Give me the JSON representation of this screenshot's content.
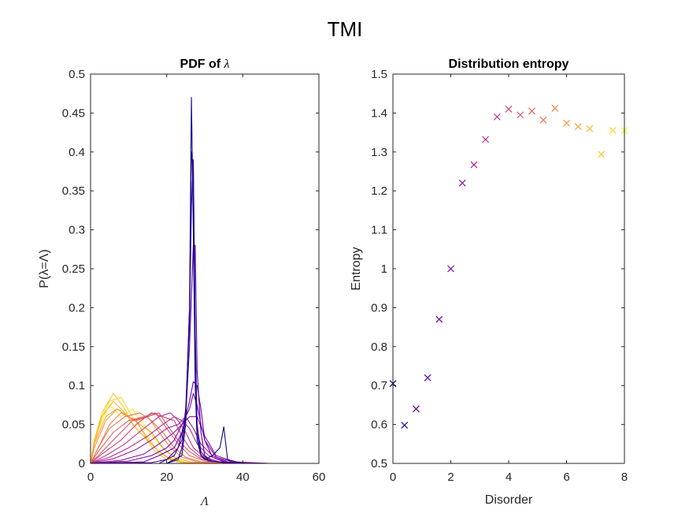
{
  "figure_title": "TMI",
  "chart_data": [
    {
      "type": "line",
      "title": "PDF of λ",
      "title_prefix": "PDF of ",
      "title_symbol": "λ",
      "xlabel": "Λ",
      "ylabel": "P(λ=Λ)",
      "xlim": [
        0,
        60
      ],
      "ylim": [
        0,
        0.5
      ],
      "xticks": [
        0,
        20,
        40,
        60
      ],
      "yticks": [
        0,
        0.05,
        0.1,
        0.15,
        0.2,
        0.25,
        0.3,
        0.35,
        0.4,
        0.45,
        0.5
      ],
      "colormap": "plasma",
      "series": [
        {
          "color": "#0d0887",
          "x": [
            0,
            20,
            22,
            24,
            25,
            26,
            26.5,
            27,
            27.5,
            28,
            29,
            30,
            32,
            34,
            35,
            36,
            40,
            50
          ],
          "y": [
            0,
            0,
            0.005,
            0.01,
            0.05,
            0.2,
            0.47,
            0.3,
            0.1,
            0.03,
            0.01,
            0.005,
            0.01,
            0.02,
            0.047,
            0.005,
            0,
            0
          ]
        },
        {
          "color": "#2a0593",
          "x": [
            0,
            20,
            23,
            24,
            25,
            26,
            26.5,
            27,
            27.5,
            28,
            29,
            31,
            34,
            36,
            40,
            50
          ],
          "y": [
            0,
            0,
            0.005,
            0.02,
            0.06,
            0.2,
            0.4,
            0.38,
            0.15,
            0.04,
            0.01,
            0.003,
            0.002,
            0.001,
            0,
            0
          ]
        },
        {
          "color": "#41049d",
          "x": [
            0,
            18,
            22,
            24,
            25,
            26,
            26.5,
            27,
            27.5,
            28,
            29,
            31,
            35,
            40,
            50
          ],
          "y": [
            0,
            0,
            0.01,
            0.03,
            0.07,
            0.18,
            0.33,
            0.39,
            0.17,
            0.05,
            0.015,
            0.004,
            0.001,
            0,
            0
          ]
        },
        {
          "color": "#5601a4",
          "x": [
            0,
            16,
            20,
            23,
            25,
            26,
            27,
            27.5,
            28,
            29,
            30,
            32,
            36,
            45
          ],
          "y": [
            0,
            0.001,
            0.005,
            0.02,
            0.06,
            0.15,
            0.28,
            0.28,
            0.12,
            0.04,
            0.01,
            0.003,
            0.001,
            0
          ]
        },
        {
          "color": "#6a00a8",
          "x": [
            0,
            14,
            18,
            22,
            24,
            25,
            26,
            27,
            28,
            29,
            30,
            32,
            36,
            45
          ],
          "y": [
            0,
            0.002,
            0.01,
            0.02,
            0.04,
            0.06,
            0.08,
            0.105,
            0.1,
            0.07,
            0.03,
            0.008,
            0.001,
            0
          ]
        },
        {
          "color": "#7e03a8",
          "x": [
            0,
            10,
            16,
            20,
            22,
            24,
            26,
            27,
            28,
            29,
            30,
            33,
            38,
            47
          ],
          "y": [
            0,
            0.003,
            0.01,
            0.02,
            0.03,
            0.05,
            0.07,
            0.09,
            0.075,
            0.05,
            0.03,
            0.008,
            0.001,
            0
          ]
        },
        {
          "color": "#8f0da4",
          "x": [
            0,
            8,
            14,
            18,
            22,
            24,
            26,
            28,
            30,
            33,
            38,
            47
          ],
          "y": [
            0,
            0.004,
            0.012,
            0.025,
            0.04,
            0.05,
            0.06,
            0.06,
            0.035,
            0.01,
            0.002,
            0
          ]
        },
        {
          "color": "#a01a9c",
          "x": [
            0,
            6,
            12,
            16,
            20,
            23,
            25,
            27,
            29,
            32,
            36,
            45
          ],
          "y": [
            0,
            0.006,
            0.018,
            0.03,
            0.045,
            0.05,
            0.06,
            0.045,
            0.025,
            0.01,
            0.002,
            0
          ]
        },
        {
          "color": "#b12a90",
          "x": [
            0,
            5,
            10,
            15,
            19,
            22,
            24,
            26,
            28,
            31,
            35,
            45
          ],
          "y": [
            0,
            0.008,
            0.02,
            0.035,
            0.05,
            0.06,
            0.055,
            0.045,
            0.025,
            0.01,
            0.002,
            0
          ]
        },
        {
          "color": "#bf3984",
          "x": [
            0,
            4,
            9,
            14,
            18,
            21,
            23,
            25,
            27,
            30,
            34,
            44
          ],
          "y": [
            0,
            0.01,
            0.025,
            0.045,
            0.06,
            0.065,
            0.055,
            0.04,
            0.02,
            0.008,
            0.002,
            0
          ]
        },
        {
          "color": "#cc4778",
          "x": [
            0,
            3,
            8,
            12,
            16,
            19,
            22,
            24,
            26,
            29,
            33,
            42
          ],
          "y": [
            0,
            0.012,
            0.03,
            0.05,
            0.065,
            0.06,
            0.055,
            0.035,
            0.02,
            0.008,
            0.002,
            0
          ]
        },
        {
          "color": "#d8576b",
          "x": [
            0,
            3,
            7,
            11,
            15,
            18,
            20,
            23,
            26,
            29,
            33,
            40
          ],
          "y": [
            0,
            0.015,
            0.035,
            0.055,
            0.06,
            0.065,
            0.05,
            0.03,
            0.015,
            0.006,
            0.001,
            0
          ]
        },
        {
          "color": "#e16462",
          "x": [
            0,
            2,
            6,
            10,
            14,
            17,
            20,
            23,
            26,
            30,
            36
          ],
          "y": [
            0,
            0.015,
            0.04,
            0.055,
            0.06,
            0.065,
            0.045,
            0.025,
            0.01,
            0.003,
            0
          ]
        },
        {
          "color": "#ea7457",
          "x": [
            0,
            2,
            5,
            9,
            13,
            16,
            19,
            22,
            25,
            29,
            35
          ],
          "y": [
            0,
            0.02,
            0.045,
            0.06,
            0.065,
            0.055,
            0.04,
            0.02,
            0.008,
            0.002,
            0
          ]
        },
        {
          "color": "#f2844b",
          "x": [
            0,
            2,
            5,
            8,
            12,
            15,
            18,
            21,
            24,
            28,
            34
          ],
          "y": [
            0,
            0.02,
            0.05,
            0.065,
            0.055,
            0.06,
            0.04,
            0.02,
            0.008,
            0.002,
            0
          ]
        },
        {
          "color": "#f89540",
          "x": [
            0,
            1,
            4,
            7,
            10,
            13,
            16,
            19,
            22,
            26,
            32
          ],
          "y": [
            0,
            0.02,
            0.055,
            0.07,
            0.06,
            0.05,
            0.04,
            0.02,
            0.008,
            0.002,
            0
          ]
        },
        {
          "color": "#fca636",
          "x": [
            0,
            1,
            4,
            7,
            10,
            12,
            15,
            18,
            21,
            25,
            30
          ],
          "y": [
            0,
            0.025,
            0.06,
            0.07,
            0.06,
            0.055,
            0.03,
            0.015,
            0.006,
            0.001,
            0
          ]
        },
        {
          "color": "#fdb52e",
          "x": [
            0,
            1,
            3,
            6,
            9,
            12,
            15,
            18,
            21,
            25,
            30
          ],
          "y": [
            0,
            0.025,
            0.06,
            0.08,
            0.065,
            0.045,
            0.03,
            0.015,
            0.005,
            0.001,
            0
          ]
        },
        {
          "color": "#fdc527",
          "x": [
            0,
            1,
            3,
            6,
            9,
            11,
            14,
            17,
            20,
            24,
            28
          ],
          "y": [
            0,
            0.03,
            0.065,
            0.09,
            0.07,
            0.05,
            0.035,
            0.015,
            0.005,
            0.001,
            0
          ]
        },
        {
          "color": "#f8d824",
          "x": [
            0,
            1,
            3,
            5,
            8,
            11,
            14,
            17,
            20,
            24,
            28
          ],
          "y": [
            0,
            0.03,
            0.06,
            0.08,
            0.085,
            0.06,
            0.04,
            0.02,
            0.008,
            0.002,
            0
          ]
        },
        {
          "color": "#f0f921",
          "x": [
            0,
            1,
            3,
            5,
            8,
            11,
            14,
            17,
            20,
            23,
            27
          ],
          "y": [
            0,
            0.03,
            0.055,
            0.075,
            0.06,
            0.07,
            0.05,
            0.03,
            0.015,
            0.004,
            0
          ]
        }
      ]
    },
    {
      "type": "scatter",
      "title": "Distribution entropy",
      "xlabel": "Disorder",
      "ylabel": "Entropy",
      "xlim": [
        0,
        8
      ],
      "ylim": [
        0.5,
        1.5
      ],
      "xticks": [
        0,
        2,
        4,
        6,
        8
      ],
      "yticks": [
        0.5,
        0.6,
        0.7,
        0.8,
        0.9,
        1,
        1.1,
        1.2,
        1.3,
        1.4,
        1.5
      ],
      "marker": "x",
      "colormap": "plasma",
      "x": [
        0,
        0.4,
        0.8,
        1.2,
        1.6,
        2.0,
        2.4,
        2.8,
        3.2,
        3.6,
        4.0,
        4.4,
        4.8,
        5.2,
        5.6,
        6.0,
        6.4,
        6.8,
        7.2,
        7.6,
        8.0
      ],
      "y": [
        0.705,
        0.598,
        0.64,
        0.72,
        0.87,
        1.0,
        1.22,
        1.267,
        1.332,
        1.39,
        1.41,
        1.395,
        1.405,
        1.382,
        1.412,
        1.374,
        1.365,
        1.36,
        1.294,
        1.355,
        1.355
      ],
      "colors": [
        "#0d0887",
        "#2a0593",
        "#41049d",
        "#5601a4",
        "#6a00a8",
        "#7e03a8",
        "#8f0da4",
        "#a01a9c",
        "#b12a90",
        "#bf3984",
        "#cc4778",
        "#d8576b",
        "#e16462",
        "#ea7457",
        "#f2844b",
        "#f89540",
        "#fca636",
        "#fdb52e",
        "#fdc527",
        "#f8d824",
        "#f0f921"
      ]
    }
  ]
}
